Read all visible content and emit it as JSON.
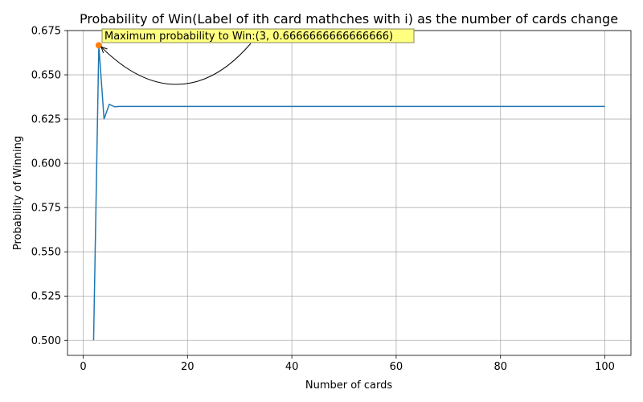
{
  "chart_data": {
    "type": "line",
    "title": "Probability of Win(Label of ith card mathches with i) as the number of cards change",
    "xlabel": "Number of cards",
    "ylabel": "Probability of Winning",
    "xlim": [
      -3,
      105
    ],
    "ylim": [
      0.4915,
      0.675
    ],
    "xticks": [
      0,
      20,
      40,
      60,
      80,
      100
    ],
    "yticks": [
      0.5,
      0.525,
      0.55,
      0.575,
      0.6,
      0.625,
      0.65,
      0.675
    ],
    "grid": true,
    "series": [
      {
        "color": "#1f77b4",
        "x": [
          2,
          3,
          4,
          5,
          6,
          7,
          8,
          9,
          10,
          20,
          40,
          60,
          80,
          100
        ],
        "y": [
          0.5,
          0.6666666666666666,
          0.625,
          0.6333333333333333,
          0.6319444444444444,
          0.6321428571428571,
          0.6321180555555556,
          0.6321208112874779,
          0.6321205357142857,
          0.6321205588285577,
          0.6321205588285577,
          0.6321205588285577,
          0.6321205588285577,
          0.6321205588285577
        ]
      }
    ],
    "highlight_point": {
      "x": 3,
      "y": 0.6666666666666666,
      "color": "#ff7f0e"
    },
    "annotation": {
      "text": "Maximum probability to Win:(3, 0.6666666666666666)",
      "box_color": "#ffff80"
    }
  }
}
